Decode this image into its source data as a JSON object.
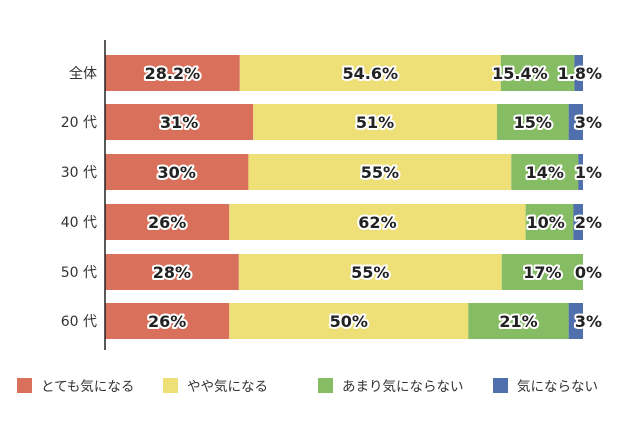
{
  "chart_data": {
    "type": "bar",
    "orientation": "horizontal-stacked-100",
    "categories": [
      "全体",
      "20 代",
      "30 代",
      "40 代",
      "50 代",
      "60 代"
    ],
    "series": [
      {
        "name": "とても気になる",
        "color": "#d9705c",
        "values": [
          28.2,
          31,
          30,
          26,
          28,
          26
        ],
        "labels": [
          "28.2%",
          "31%",
          "30%",
          "26%",
          "28%",
          "26%"
        ]
      },
      {
        "name": "やや気になる",
        "color": "#eedf76",
        "values": [
          54.6,
          51,
          55,
          62,
          55,
          50
        ],
        "labels": [
          "54.6%",
          "51%",
          "55%",
          "62%",
          "55%",
          "50%"
        ]
      },
      {
        "name": "あまり気にならない",
        "color": "#86bd64",
        "values": [
          15.4,
          15,
          14,
          10,
          17,
          21
        ],
        "labels": [
          "15.4%",
          "15%",
          "14%",
          "10%",
          "17%",
          "21%"
        ]
      },
      {
        "name": "気にならない",
        "color": "#4f6fad",
        "values": [
          1.8,
          3,
          1,
          2,
          0,
          3
        ],
        "labels": [
          "1.8%",
          "3%",
          "1%",
          "2%",
          "0%",
          "3%"
        ]
      }
    ],
    "legend": "bottom",
    "grid": false
  }
}
